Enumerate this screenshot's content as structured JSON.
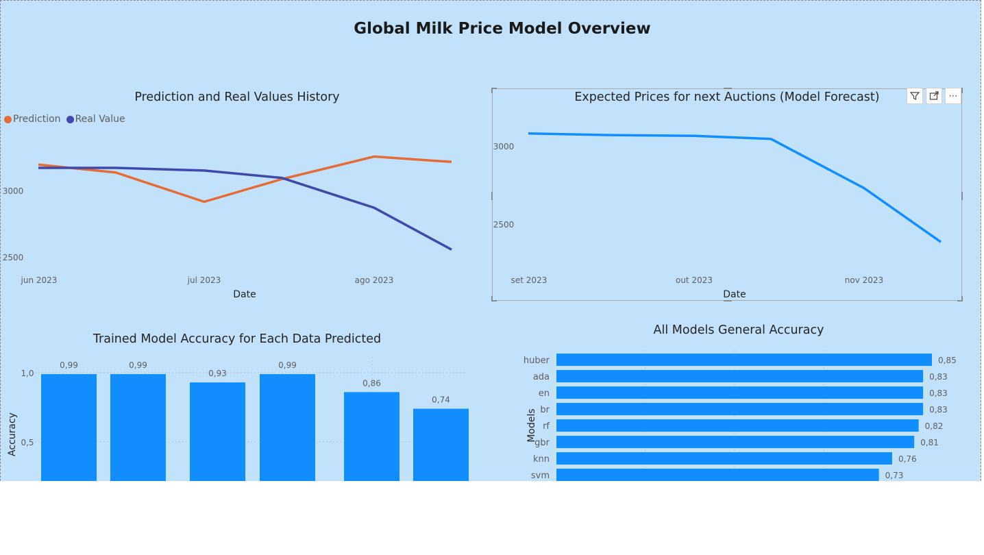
{
  "page": {
    "title": "Global Milk Price Model Overview"
  },
  "visual_header": {
    "icons": [
      "filter-icon",
      "focus-mode-icon",
      "more-options-icon"
    ],
    "more_label": "⋯"
  },
  "colors": {
    "prediction": "#e66c37",
    "real": "#3f49ac",
    "accent": "#118dff",
    "background": "#c2e1fb"
  },
  "chart_data": [
    {
      "type": "line",
      "title": "Prediction and Real Values History",
      "xlabel": "Date",
      "ylabel": "",
      "x_ticks": [
        "jun 2023",
        "jul 2023",
        "ago 2023"
      ],
      "y_ticks": [
        "2500",
        "3000"
      ],
      "x": [
        "2023-06-01",
        "2023-06-15",
        "2023-07-01",
        "2023-07-15",
        "2023-08-01",
        "2023-08-15"
      ],
      "series": [
        {
          "name": "Prediction",
          "values": [
            3195,
            3135,
            2915,
            3085,
            3255,
            3215
          ]
        },
        {
          "name": "Real Value",
          "values": [
            3170,
            3170,
            3150,
            3095,
            2870,
            2555
          ]
        }
      ],
      "legend": "top-left"
    },
    {
      "type": "line",
      "title": "Expected Prices for next Auctions (Model Forecast)",
      "xlabel": "Date",
      "ylabel": "",
      "x_ticks": [
        "set 2023",
        "out 2023",
        "nov 2023"
      ],
      "y_ticks": [
        "2500",
        "3000"
      ],
      "x": [
        "2023-09-01",
        "2023-09-15",
        "2023-10-01",
        "2023-10-15",
        "2023-11-01",
        "2023-11-15"
      ],
      "series": [
        {
          "values": [
            3080,
            3070,
            3065,
            3045,
            2730,
            2385
          ]
        }
      ]
    },
    {
      "type": "bar",
      "title": "Trained Model Accuracy for Each Data Predicted",
      "xlabel": "",
      "ylabel": "Accuracy",
      "y_ticks": [
        "0,5",
        "1,0"
      ],
      "values": [
        0.99,
        0.99,
        0.93,
        0.99,
        0.86,
        0.74
      ],
      "labels": [
        "0,99",
        "0,99",
        "0,93",
        "0,99",
        "0,86",
        "0,74"
      ]
    },
    {
      "type": "bar",
      "orientation": "horizontal",
      "title": "All Models General Accuracy",
      "xlabel": "",
      "ylabel": "Models",
      "categories": [
        "huber",
        "ada",
        "en",
        "br",
        "rf",
        "gbr",
        "knn",
        "svm"
      ],
      "values": [
        0.85,
        0.83,
        0.83,
        0.83,
        0.82,
        0.81,
        0.76,
        0.73
      ],
      "labels": [
        "0,85",
        "0,83",
        "0,83",
        "0,83",
        "0,82",
        "0,81",
        "0,76",
        "0,73"
      ]
    }
  ]
}
